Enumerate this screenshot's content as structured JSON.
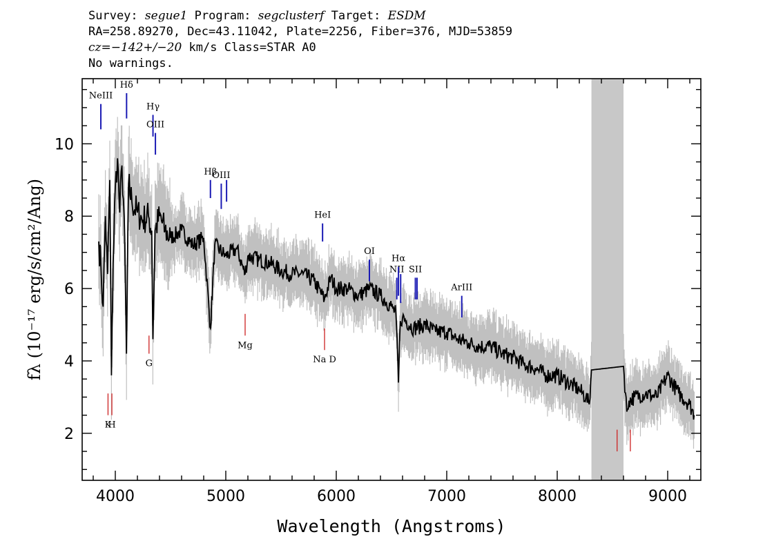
{
  "header": {
    "line1": {
      "survey_label": "Survey:",
      "survey": "segue1",
      "program_label": "Program:",
      "program": "segclusterf",
      "target_label": "Target:",
      "target": "ESDM"
    },
    "line2": "RA=258.89270, Dec=43.11042, Plate=2256, Fiber=376, MJD=53859",
    "line3": {
      "cz": "cz=−142+/−20",
      "units": "km/s",
      "class": "Class=STAR A0"
    },
    "line4": "No warnings."
  },
  "colors": {
    "spectrum": "#000000",
    "error": "#c0c0c0",
    "emission_lines": "#1a1ab4",
    "absorption_lines": "#cc2020",
    "masked_band": "#c8c8c8"
  },
  "chart_data": {
    "type": "line",
    "xlabel": "Wavelength (Angstroms)",
    "ylabel": "fλ (10⁻¹⁷ erg/s/cm²/Ang)",
    "xlim": [
      3700,
      9300
    ],
    "ylim": [
      0.7,
      11.8
    ],
    "x_ticks": [
      4000,
      5000,
      6000,
      7000,
      8000,
      9000
    ],
    "y_ticks": [
      2,
      4,
      6,
      8,
      10
    ],
    "grid": false,
    "masked_band": [
      8310,
      8600
    ],
    "series": [
      {
        "role": "flux",
        "x": [
          3850,
          3870,
          3890,
          3910,
          3930,
          3950,
          3965,
          3980,
          4000,
          4020,
          4040,
          4060,
          4080,
          4101,
          4120,
          4150,
          4200,
          4250,
          4300,
          4330,
          4340,
          4360,
          4400,
          4450,
          4500,
          4600,
          4700,
          4800,
          4861,
          4900,
          5000,
          5100,
          5175,
          5200,
          5300,
          5400,
          5500,
          5600,
          5700,
          5800,
          5893,
          5950,
          6000,
          6100,
          6200,
          6300,
          6400,
          6500,
          6540,
          6563,
          6580,
          6600,
          6700,
          6800,
          6900,
          7000,
          7100,
          7200,
          7300,
          7400,
          7500,
          7600,
          7700,
          7800,
          7900,
          8000,
          8100,
          8200,
          8260,
          8290,
          8310,
          8600,
          8630,
          8650,
          8700,
          8800,
          8900,
          9000,
          9100,
          9200,
          9240
        ],
        "y": [
          7.3,
          6.6,
          5.5,
          8.0,
          6.4,
          9.0,
          3.6,
          6.7,
          8.8,
          9.6,
          8.1,
          9.4,
          8.0,
          4.2,
          8.9,
          8.4,
          8.1,
          7.9,
          8.0,
          7.6,
          4.6,
          7.6,
          8.0,
          7.6,
          7.4,
          7.6,
          7.2,
          7.4,
          4.9,
          7.2,
          6.9,
          7.1,
          6.4,
          6.9,
          6.8,
          6.7,
          6.5,
          6.4,
          6.4,
          6.2,
          5.7,
          6.3,
          6.0,
          6.0,
          5.8,
          6.0,
          5.8,
          5.5,
          5.3,
          3.4,
          5.1,
          5.2,
          4.9,
          5.0,
          4.8,
          4.8,
          4.6,
          4.5,
          4.4,
          4.4,
          4.2,
          4.1,
          3.9,
          3.8,
          3.6,
          3.6,
          3.4,
          3.2,
          3.0,
          2.8,
          3.75,
          3.85,
          2.6,
          2.9,
          3.0,
          3.1,
          3.0,
          3.6,
          3.1,
          2.8,
          2.5
        ]
      }
    ],
    "emission_lines": [
      {
        "label": "NeIII",
        "wavelength": 3869,
        "y_top": 11.1,
        "y_bottom": 10.4
      },
      {
        "label": "Hδ",
        "wavelength": 4102,
        "y_top": 11.4,
        "y_bottom": 10.7
      },
      {
        "label": "Hγ",
        "wavelength": 4341,
        "y_top": 10.8,
        "y_bottom": 10.2
      },
      {
        "label": "OIII",
        "wavelength": 4363,
        "y_top": 10.3,
        "y_bottom": 9.7
      },
      {
        "label": "Hβ",
        "wavelength": 4861,
        "y_top": 9.0,
        "y_bottom": 8.5
      },
      {
        "label": "OIII",
        "wavelength": 4959,
        "y_top": 8.9,
        "y_bottom": 8.2
      },
      {
        "label": "",
        "wavelength": 5007,
        "y_top": 9.0,
        "y_bottom": 8.4
      },
      {
        "label": "HeI",
        "wavelength": 5876,
        "y_top": 7.8,
        "y_bottom": 7.3
      },
      {
        "label": "OI",
        "wavelength": 6300,
        "y_top": 6.8,
        "y_bottom": 6.2
      },
      {
        "label": "NII",
        "wavelength": 6548,
        "y_top": 6.3,
        "y_bottom": 5.7
      },
      {
        "label": "Hα",
        "wavelength": 6563,
        "y_top": 6.6,
        "y_bottom": 5.8
      },
      {
        "label": "",
        "wavelength": 6583,
        "y_top": 6.4,
        "y_bottom": 5.6
      },
      {
        "label": "SII",
        "wavelength": 6716,
        "y_top": 6.3,
        "y_bottom": 5.7
      },
      {
        "label": "",
        "wavelength": 6731,
        "y_top": 6.3,
        "y_bottom": 5.7
      },
      {
        "label": "ArIII",
        "wavelength": 7136,
        "y_top": 5.8,
        "y_bottom": 5.2
      }
    ],
    "absorption_lines": [
      {
        "label": "K",
        "wavelength": 3934,
        "y_top": 3.1,
        "y_bottom": 2.5
      },
      {
        "label": "H",
        "wavelength": 3969,
        "y_top": 3.1,
        "y_bottom": 2.5
      },
      {
        "label": "G",
        "wavelength": 4305,
        "y_top": 4.7,
        "y_bottom": 4.2
      },
      {
        "label": "Mg",
        "wavelength": 5175,
        "y_top": 5.3,
        "y_bottom": 4.7
      },
      {
        "label": "Na D",
        "wavelength": 5894,
        "y_top": 4.9,
        "y_bottom": 4.3
      },
      {
        "label": "",
        "wavelength": 8542,
        "y_top": 2.1,
        "y_bottom": 1.5
      },
      {
        "label": "",
        "wavelength": 8662,
        "y_top": 2.1,
        "y_bottom": 1.5
      }
    ]
  }
}
